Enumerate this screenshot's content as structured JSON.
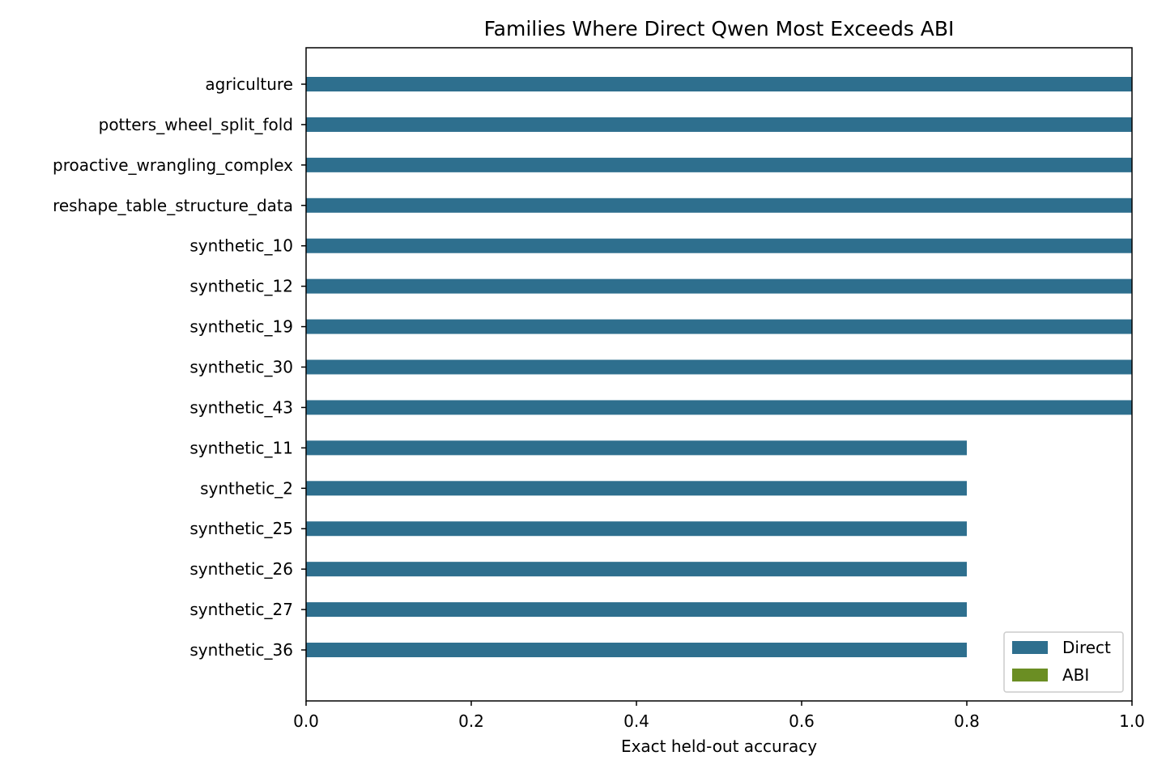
{
  "chart_data": {
    "type": "bar",
    "orientation": "horizontal",
    "title": "Families Where Direct Qwen Most Exceeds ABI",
    "xlabel": "Exact held-out accuracy",
    "ylabel": "",
    "xlim": [
      0.0,
      1.0
    ],
    "xticks": [
      "0.0",
      "0.2",
      "0.4",
      "0.6",
      "0.8",
      "1.0"
    ],
    "grid": false,
    "legend_position": "bottom-right",
    "categories": [
      "agriculture",
      "potters_wheel_split_fold",
      "proactive_wrangling_complex",
      "reshape_table_structure_data",
      "synthetic_10",
      "synthetic_12",
      "synthetic_19",
      "synthetic_30",
      "synthetic_43",
      "synthetic_11",
      "synthetic_2",
      "synthetic_25",
      "synthetic_26",
      "synthetic_27",
      "synthetic_36"
    ],
    "series": [
      {
        "name": "Direct",
        "color": "#2e6f8e",
        "values": [
          1.0,
          1.0,
          1.0,
          1.0,
          1.0,
          1.0,
          1.0,
          1.0,
          1.0,
          0.8,
          0.8,
          0.8,
          0.8,
          0.8,
          0.8
        ]
      },
      {
        "name": "ABI",
        "color": "#6b8e23",
        "values": [
          0,
          0,
          0,
          0,
          0,
          0,
          0,
          0,
          0,
          0,
          0,
          0,
          0,
          0,
          0
        ]
      }
    ]
  }
}
